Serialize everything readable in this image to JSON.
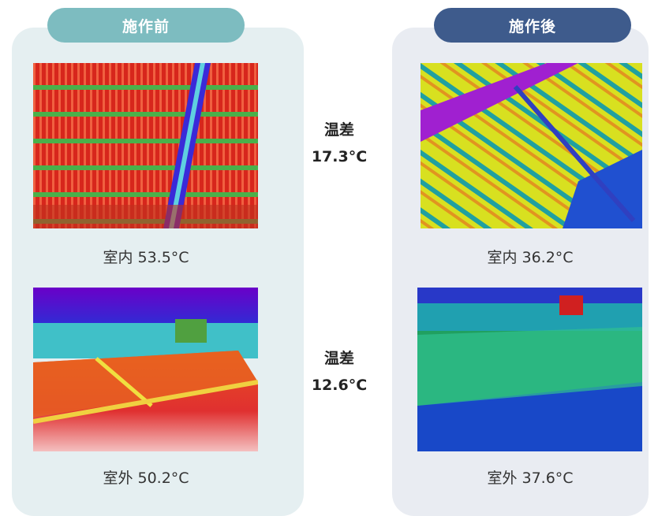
{
  "before": {
    "label": "施作前",
    "indoor": "室内 53.5°C",
    "outdoor": "室外 50.2°C"
  },
  "after": {
    "label": "施作後",
    "indoor": "室内 36.2°C",
    "outdoor": "室外 37.6°C"
  },
  "differences": [
    {
      "label": "温差",
      "value": "17.3°C"
    },
    {
      "label": "温差",
      "value": "12.6°C"
    }
  ]
}
